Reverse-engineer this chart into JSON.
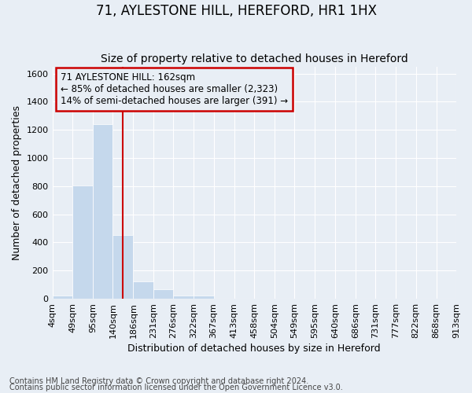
{
  "title": "71, AYLESTONE HILL, HEREFORD, HR1 1HX",
  "subtitle": "Size of property relative to detached houses in Hereford",
  "xlabel": "Distribution of detached houses by size in Hereford",
  "ylabel": "Number of detached properties",
  "footnote1": "Contains HM Land Registry data © Crown copyright and database right 2024.",
  "footnote2": "Contains public sector information licensed under the Open Government Licence v3.0.",
  "bar_edges": [
    4,
    49,
    95,
    140,
    186,
    231,
    276,
    322,
    367,
    413,
    458,
    504,
    549,
    595,
    640,
    686,
    731,
    777,
    822,
    868,
    913
  ],
  "bar_heights": [
    25,
    805,
    1240,
    455,
    125,
    65,
    25,
    20,
    0,
    0,
    0,
    0,
    0,
    0,
    0,
    0,
    0,
    0,
    0,
    0
  ],
  "bar_color": "#c5d8ec",
  "bar_edgecolor": "#ffffff",
  "background_color": "#e8eef5",
  "vline_x": 162,
  "vline_color": "#cc0000",
  "ylim": [
    0,
    1650
  ],
  "yticks": [
    0,
    200,
    400,
    600,
    800,
    1000,
    1200,
    1400,
    1600
  ],
  "annotation_line1": "71 AYLESTONE HILL: 162sqm",
  "annotation_line2": "← 85% of detached houses are smaller (2,323)",
  "annotation_line3": "14% of semi-detached houses are larger (391) →",
  "grid_color": "#ffffff",
  "title_fontsize": 12,
  "subtitle_fontsize": 10,
  "label_fontsize": 9,
  "tick_fontsize": 8,
  "footnote_fontsize": 7
}
